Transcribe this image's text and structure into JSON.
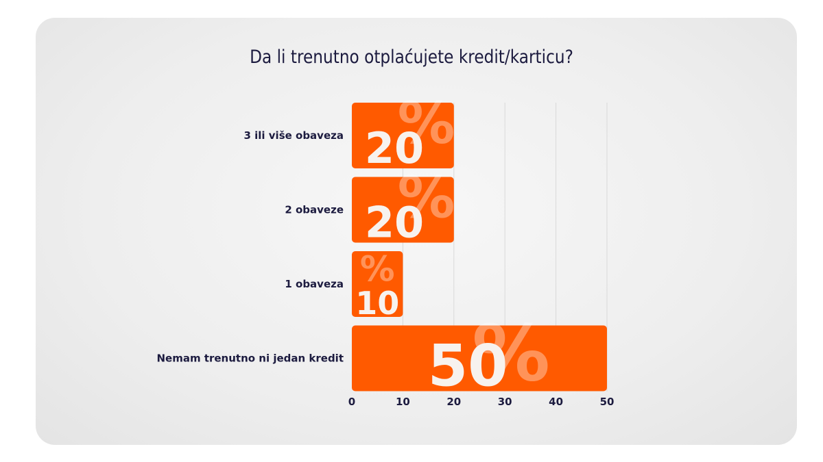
{
  "chart_data": {
    "type": "bar",
    "orientation": "horizontal",
    "title": "Da li trenutno otplaćujete kredit/karticu?",
    "categories": [
      "3 ili više obaveza",
      "2 obaveze",
      "1 obaveza",
      "Nemam trenutno ni jedan kredit"
    ],
    "values": [
      20,
      20,
      10,
      50
    ],
    "value_labels": [
      "20",
      "20",
      "10",
      "50"
    ],
    "percent_symbol": "%",
    "xlim": [
      0,
      50
    ],
    "xticks": [
      "0",
      "10",
      "20",
      "30",
      "40",
      "50"
    ],
    "grid": true,
    "xlabel": "",
    "ylabel": "",
    "colors": {
      "bar": "#ff5a00",
      "text": "#1c1b3f",
      "grid": "#d9d9d9"
    }
  }
}
